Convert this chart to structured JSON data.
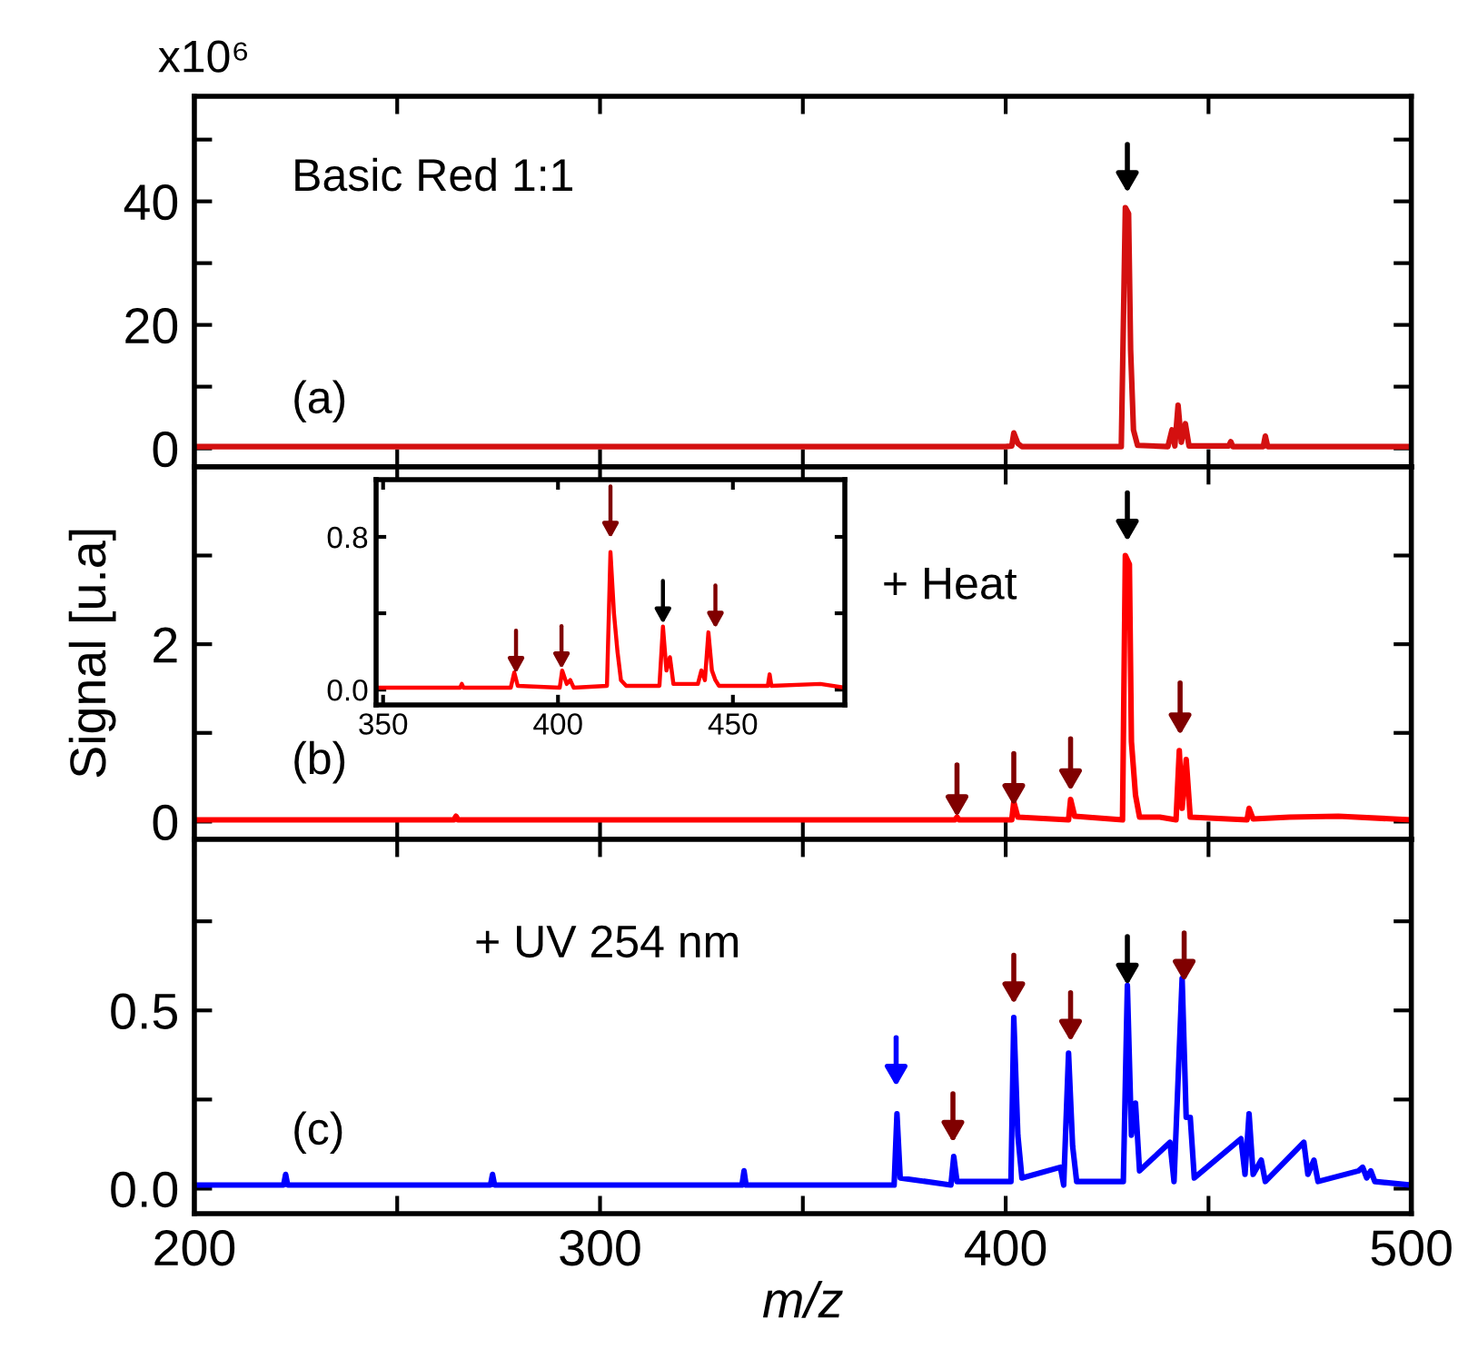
{
  "chart_data": [
    {
      "type": "line",
      "color": "#d41010",
      "tick_labels": "y",
      "xlim": [
        200,
        500
      ],
      "xticks": [
        200,
        {
          "value": 250,
          "label": null
        },
        300,
        {
          "value": 350,
          "label": null
        },
        400,
        {
          "value": 450,
          "label": null
        },
        500
      ],
      "ylim": [
        -3,
        57
      ],
      "yticks": [
        0,
        {
          "value": 10,
          "label": null
        },
        20,
        {
          "value": 30,
          "label": null
        },
        40,
        {
          "value": 50,
          "label": null
        }
      ],
      "x": [
        200,
        300,
        400,
        401.5,
        402,
        403,
        404,
        428.5,
        429.5,
        430.3,
        430.8,
        431.5,
        432.5,
        440,
        441,
        441.7,
        442.5,
        443.3,
        444.3,
        445.2,
        455,
        455.5,
        456,
        463.5,
        464,
        464.6,
        500
      ],
      "values": [
        0.3,
        0.3,
        0.3,
        0.4,
        2.5,
        0.8,
        0.3,
        0.3,
        39,
        38,
        16,
        3,
        0.5,
        0.3,
        3,
        0.4,
        7,
        1,
        4,
        0.4,
        0.4,
        1.1,
        0.3,
        0.3,
        2,
        0.3,
        0.3
      ],
      "annotations": [
        "x10⁶",
        "Basic Red 1:1",
        "(a)"
      ]
    },
    {
      "type": "line",
      "color": "#ff0000",
      "tick_labels": "y",
      "ylabel": "Signal [u.a]",
      "xlim": [
        200,
        500
      ],
      "xticks": [
        200,
        {
          "value": 250,
          "label": null
        },
        300,
        {
          "value": 350,
          "label": null
        },
        400,
        {
          "value": 450,
          "label": null
        },
        500
      ],
      "ylim": [
        -0.2,
        4
      ],
      "yticks": [
        0,
        {
          "value": 1,
          "label": null
        },
        2,
        {
          "value": 3,
          "label": null
        }
      ],
      "x": [
        200,
        264,
        264.5,
        265,
        387.5,
        388,
        388.5,
        401.5,
        402,
        403,
        415.5,
        416,
        417,
        428.8,
        429.5,
        430.5,
        431,
        432,
        433,
        438,
        442,
        442.8,
        443.5,
        444.5,
        445.5,
        459.5,
        460,
        461,
        470,
        482,
        500
      ],
      "values": [
        0.02,
        0.02,
        0.06,
        0.02,
        0.02,
        0.05,
        0.02,
        0.02,
        0.22,
        0.05,
        0.02,
        0.25,
        0.06,
        0.02,
        3.0,
        2.9,
        0.9,
        0.3,
        0.05,
        0.05,
        0.02,
        0.8,
        0.15,
        0.7,
        0.05,
        0.02,
        0.15,
        0.03,
        0.05,
        0.06,
        0.02
      ],
      "annotations": [
        "+ Heat",
        "(b)"
      ]
    },
    {
      "type": "line",
      "color": "#ff0000",
      "xlim": [
        348,
        482
      ],
      "xticks": [
        350,
        400,
        450
      ],
      "ylim": [
        -0.08,
        1.1
      ],
      "yticks": [
        {
          "value": 0,
          "label": "0.0"
        },
        {
          "value": 0.4,
          "label": null
        },
        0.8
      ],
      "x": [
        348,
        372,
        372.5,
        373,
        386.5,
        387.5,
        388.5,
        400.5,
        401.2,
        402.5,
        403.5,
        404.5,
        414,
        415,
        416,
        417,
        418,
        419.5,
        429,
        430,
        431,
        432,
        433,
        440,
        441,
        442,
        443,
        444,
        445,
        446,
        460,
        460.5,
        461,
        475,
        482
      ],
      "values": [
        0.01,
        0.01,
        0.03,
        0.01,
        0.01,
        0.09,
        0.02,
        0.01,
        0.1,
        0.03,
        0.05,
        0.01,
        0.02,
        0.72,
        0.4,
        0.2,
        0.05,
        0.02,
        0.02,
        0.33,
        0.1,
        0.17,
        0.03,
        0.03,
        0.1,
        0.05,
        0.3,
        0.1,
        0.05,
        0.02,
        0.02,
        0.08,
        0.02,
        0.03,
        0.01
      ]
    },
    {
      "type": "line",
      "color": "#0000ff",
      "xlabel": "m/z",
      "xlim": [
        200,
        500
      ],
      "xticks": [
        200,
        {
          "value": 250,
          "label": null
        },
        300,
        {
          "value": 350,
          "label": null
        },
        400,
        {
          "value": 450,
          "label": null
        },
        500
      ],
      "ylim": [
        -0.07,
        0.98
      ],
      "yticks": [
        {
          "value": 0,
          "label": "0.0"
        },
        {
          "value": 0.25,
          "label": null
        },
        0.5,
        {
          "value": 0.75,
          "label": null
        }
      ],
      "x": [
        200,
        222,
        222.5,
        223,
        273,
        273.5,
        274,
        335,
        335.5,
        336,
        372.5,
        373.2,
        374,
        386.5,
        387.2,
        388,
        401.3,
        402,
        403,
        404,
        413.5,
        414.3,
        415.5,
        416.5,
        417.5,
        429,
        430,
        431,
        432,
        433,
        440.5,
        441.5,
        443.5,
        444.5,
        445.5,
        446.5,
        458,
        459,
        460,
        461,
        463,
        464,
        473.5,
        474.5,
        476,
        477,
        487,
        488,
        489,
        490,
        491,
        500
      ],
      "values": [
        0.01,
        0.01,
        0.04,
        0.01,
        0.01,
        0.04,
        0.01,
        0.01,
        0.05,
        0.01,
        0.01,
        0.21,
        0.03,
        0.01,
        0.09,
        0.02,
        0.02,
        0.48,
        0.15,
        0.03,
        0.06,
        0.01,
        0.38,
        0.12,
        0.02,
        0.02,
        0.57,
        0.15,
        0.24,
        0.05,
        0.13,
        0.02,
        0.59,
        0.2,
        0.2,
        0.03,
        0.14,
        0.04,
        0.21,
        0.04,
        0.08,
        0.02,
        0.13,
        0.04,
        0.08,
        0.02,
        0.05,
        0.06,
        0.03,
        0.05,
        0.02,
        0.01
      ],
      "annotations": [
        "+ UV 254 nm",
        "(c)"
      ]
    }
  ]
}
